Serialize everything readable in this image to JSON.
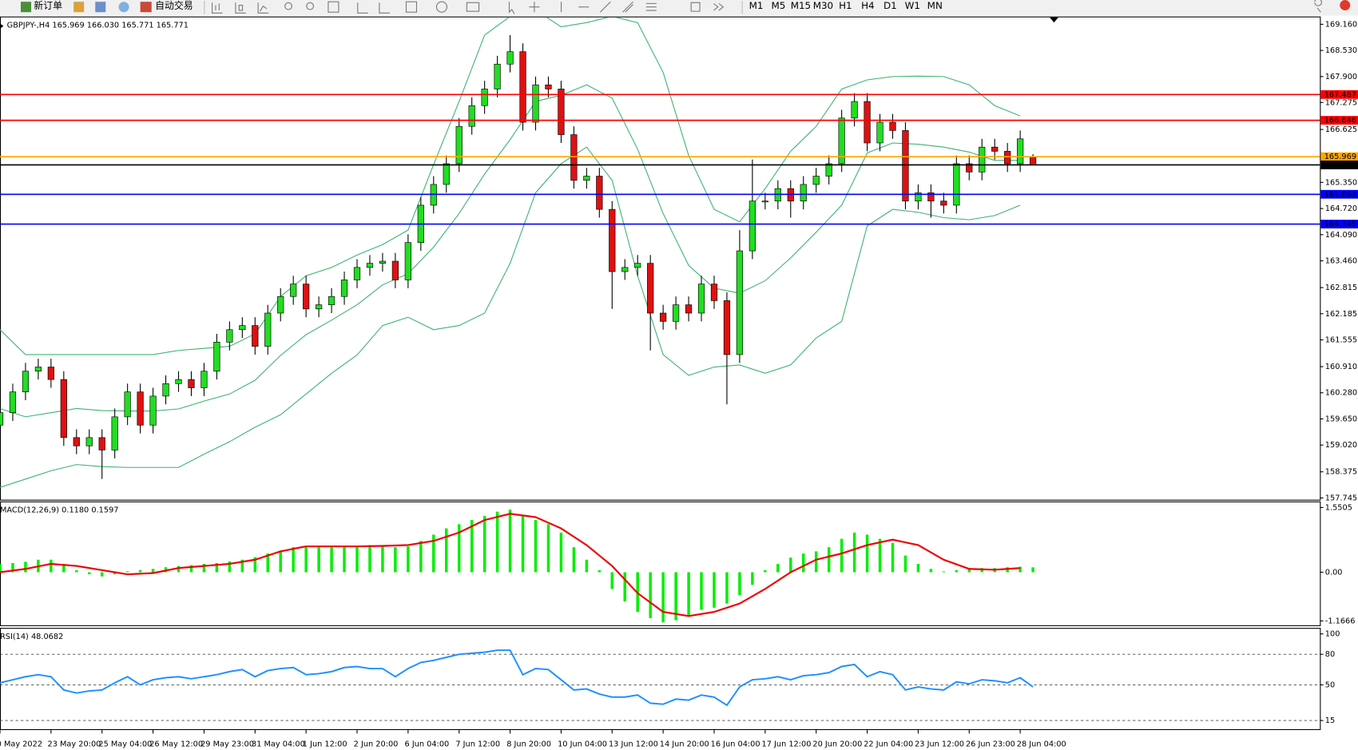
{
  "toolbar": {
    "new_order": "新订单",
    "auto_trading": "自动交易",
    "timeframes": [
      "M1",
      "M5",
      "M15",
      "M30",
      "H1",
      "H4",
      "D1",
      "W1",
      "MN"
    ]
  },
  "chart_data": [
    {
      "type": "candlestick",
      "title": "GBPJPY-,H4  165.969 166.030 165.771 165.771",
      "up_color": "#22dd22",
      "down_color": "#e01010",
      "x": [
        0,
        2,
        4,
        6,
        8,
        10,
        12,
        14,
        16,
        18,
        20,
        22,
        24,
        26,
        28,
        30,
        32,
        34,
        36,
        38,
        40,
        42,
        44,
        46,
        48,
        50,
        52,
        54,
        56,
        58,
        60,
        62,
        64,
        66,
        68,
        70,
        72,
        74,
        76,
        78,
        80,
        82,
        84,
        86,
        88,
        90,
        92,
        94,
        96,
        98,
        100,
        102,
        104,
        106,
        108,
        110,
        112,
        114,
        116,
        118,
        120,
        122,
        124,
        126,
        128,
        130,
        132,
        134,
        136,
        138,
        140,
        142,
        144,
        146,
        148,
        150,
        152,
        154,
        156,
        158,
        160,
        162
      ],
      "open": [
        159.5,
        159.8,
        160.3,
        160.8,
        160.9,
        160.6,
        159.2,
        159.0,
        159.2,
        158.9,
        159.7,
        160.3,
        159.5,
        160.2,
        160.5,
        160.6,
        160.4,
        160.8,
        161.5,
        161.8,
        161.9,
        161.4,
        162.2,
        162.6,
        162.9,
        162.3,
        162.4,
        162.6,
        163.0,
        163.3,
        163.4,
        163.45,
        163.0,
        163.9,
        164.8,
        165.3,
        165.8,
        166.7,
        167.2,
        167.6,
        168.2,
        168.5,
        166.8,
        167.7,
        167.6,
        166.5,
        165.4,
        165.5,
        164.7,
        163.2,
        163.3,
        163.4,
        162.2,
        162.0,
        162.4,
        162.2,
        162.9,
        162.5,
        161.2,
        163.7,
        164.9,
        164.9,
        165.2,
        164.9,
        165.3,
        165.5,
        165.8,
        166.9,
        167.3,
        166.3,
        166.8,
        166.6,
        164.9,
        165.1,
        164.9,
        164.8,
        165.8,
        165.6,
        166.2,
        166.1,
        165.8,
        165.969
      ],
      "high": [
        160.0,
        160.5,
        161.0,
        161.1,
        161.1,
        160.8,
        159.4,
        159.4,
        159.4,
        159.9,
        160.5,
        160.5,
        160.4,
        160.7,
        160.8,
        160.8,
        161.0,
        161.7,
        162.0,
        162.1,
        162.1,
        162.4,
        162.8,
        163.1,
        163.1,
        162.6,
        162.8,
        163.2,
        163.5,
        163.6,
        163.65,
        163.65,
        164.1,
        165.0,
        165.5,
        166.0,
        166.9,
        167.4,
        167.8,
        168.4,
        168.9,
        168.7,
        167.9,
        167.9,
        167.8,
        166.7,
        165.7,
        165.7,
        164.9,
        163.5,
        163.6,
        163.6,
        162.4,
        162.6,
        162.6,
        163.1,
        163.1,
        162.7,
        164.2,
        165.9,
        165.1,
        165.4,
        165.4,
        165.5,
        165.7,
        166.0,
        167.1,
        167.5,
        167.5,
        167.0,
        167.0,
        166.8,
        165.3,
        165.3,
        165.1,
        166.0,
        166.0,
        166.4,
        166.4,
        166.3,
        166.6,
        166.03
      ],
      "low": [
        159.3,
        159.6,
        160.1,
        160.6,
        160.4,
        159.0,
        158.8,
        158.8,
        158.2,
        158.7,
        159.5,
        159.3,
        159.3,
        160.0,
        160.3,
        160.2,
        160.2,
        160.6,
        161.3,
        161.6,
        161.2,
        161.2,
        162.0,
        162.4,
        162.1,
        162.1,
        162.2,
        162.4,
        162.8,
        163.1,
        163.2,
        162.8,
        162.8,
        163.7,
        164.6,
        165.1,
        165.6,
        166.5,
        167.0,
        167.4,
        168.0,
        166.6,
        166.6,
        167.4,
        166.3,
        165.2,
        165.2,
        164.5,
        162.3,
        163.0,
        163.1,
        161.3,
        161.8,
        161.8,
        162.0,
        162.0,
        162.3,
        160.0,
        161.0,
        163.5,
        164.7,
        164.7,
        164.5,
        164.7,
        165.1,
        165.3,
        165.6,
        166.7,
        166.1,
        166.1,
        166.4,
        164.7,
        164.7,
        164.5,
        164.6,
        164.6,
        165.4,
        165.4,
        165.9,
        165.6,
        165.6,
        165.771
      ],
      "close": [
        159.8,
        160.3,
        160.8,
        160.9,
        160.6,
        159.2,
        159.0,
        159.2,
        158.9,
        159.7,
        160.3,
        159.5,
        160.2,
        160.5,
        160.6,
        160.4,
        160.8,
        161.5,
        161.8,
        161.9,
        161.4,
        162.2,
        162.6,
        162.9,
        162.3,
        162.4,
        162.6,
        163.0,
        163.3,
        163.4,
        163.45,
        163.0,
        163.9,
        164.8,
        165.3,
        165.8,
        166.7,
        167.2,
        167.6,
        168.2,
        168.5,
        166.8,
        167.7,
        167.6,
        166.5,
        165.4,
        165.5,
        164.7,
        163.2,
        163.3,
        163.4,
        162.2,
        162.0,
        162.4,
        162.2,
        162.9,
        162.5,
        161.2,
        163.7,
        164.9,
        164.9,
        165.2,
        164.9,
        165.3,
        165.5,
        165.8,
        166.9,
        167.3,
        166.3,
        166.8,
        166.6,
        164.9,
        165.1,
        164.9,
        164.8,
        165.8,
        165.6,
        166.2,
        166.1,
        165.8,
        166.4,
        165.771
      ],
      "overlay_x": [
        0,
        4,
        8,
        12,
        16,
        20,
        24,
        28,
        32,
        36,
        40,
        44,
        48,
        52,
        56,
        60,
        64,
        68,
        72,
        76,
        80,
        84,
        88,
        92,
        96,
        100,
        104,
        108,
        112,
        116,
        120,
        124,
        128,
        132,
        136,
        140,
        144,
        148,
        152,
        156,
        160
      ],
      "overlays": [
        {
          "color": "#3cb371",
          "values": [
            161.8,
            161.2,
            161.2,
            161.2,
            161.2,
            161.2,
            161.2,
            161.3,
            161.35,
            161.4,
            161.7,
            162.6,
            163.1,
            163.3,
            163.6,
            163.85,
            164.2,
            165.78,
            167.3,
            168.9,
            169.35,
            169.5,
            169.1,
            169.2,
            169.35,
            169.2,
            168.0,
            166.0,
            164.7,
            164.4,
            165.2,
            166.1,
            166.7,
            167.6,
            167.82,
            167.9,
            167.91,
            167.9,
            167.7,
            167.2,
            166.95
          ]
        },
        {
          "color": "#3cb371",
          "values": [
            159.9,
            159.7,
            159.8,
            159.9,
            159.85,
            159.84,
            159.84,
            159.89,
            160.08,
            160.25,
            160.58,
            161.18,
            161.68,
            162.03,
            162.4,
            162.88,
            163.15,
            163.79,
            164.6,
            165.55,
            166.38,
            167.3,
            167.45,
            167.7,
            167.38,
            166.15,
            164.6,
            163.35,
            162.8,
            162.68,
            162.98,
            163.53,
            164.15,
            164.8,
            166.06,
            166.3,
            166.27,
            166.2,
            166.08,
            165.88,
            165.88
          ]
        },
        {
          "color": "#3cb371",
          "values": [
            158.0,
            158.2,
            158.4,
            158.55,
            158.5,
            158.48,
            158.48,
            158.48,
            158.8,
            159.1,
            159.45,
            159.75,
            160.25,
            160.75,
            161.19,
            161.9,
            162.1,
            161.8,
            161.9,
            162.2,
            163.4,
            165.1,
            165.8,
            166.2,
            165.4,
            163.1,
            161.2,
            160.7,
            160.9,
            160.95,
            160.75,
            160.95,
            161.6,
            162.0,
            164.3,
            164.7,
            164.63,
            164.5,
            164.45,
            164.55,
            164.8
          ]
        }
      ],
      "hlines": [
        {
          "value": 167.467,
          "color": "#ff0000"
        },
        {
          "value": 166.846,
          "color": "#ff0000"
        },
        {
          "value": 165.969,
          "color": "#ffa500"
        },
        {
          "value": 165.771,
          "color": "#000000"
        },
        {
          "value": 165.063,
          "color": "#0000ff"
        },
        {
          "value": 164.345,
          "color": "#0000ff"
        }
      ],
      "xlim": [
        0,
        207
      ],
      "xticks": [
        {
          "value": 0,
          "label": "0 May 2022"
        },
        {
          "value": 8,
          "label": "23 May 20:00"
        },
        {
          "value": 16,
          "label": "25 May 04:00"
        },
        {
          "value": 24,
          "label": "26 May 12:00"
        },
        {
          "value": 32,
          "label": "29 May 23:00"
        },
        {
          "value": 40,
          "label": "31 May 04:00"
        },
        {
          "value": 48,
          "label": "1 Jun 12:00"
        },
        {
          "value": 56,
          "label": "2 Jun 20:00"
        },
        {
          "value": 64,
          "label": "6 Jun 04:00"
        },
        {
          "value": 72,
          "label": "7 Jun 12:00"
        },
        {
          "value": 80,
          "label": "8 Jun 20:00"
        },
        {
          "value": 88,
          "label": "10 Jun 04:00"
        },
        {
          "value": 96,
          "label": "13 Jun 12:00"
        },
        {
          "value": 104,
          "label": "14 Jun 20:00"
        },
        {
          "value": 112,
          "label": "16 Jun 04:00"
        },
        {
          "value": 120,
          "label": "17 Jun 12:00"
        },
        {
          "value": 128,
          "label": "20 Jun 20:00"
        },
        {
          "value": 136,
          "label": "22 Jun 04:00"
        },
        {
          "value": 144,
          "label": "23 Jun 12:00"
        },
        {
          "value": 152,
          "label": "26 Jun 23:00"
        },
        {
          "value": 160,
          "label": "28 Jun 04:00"
        }
      ],
      "ylim": [
        157.703,
        169.327
      ],
      "yticks": [
        {
          "value": 169.16,
          "label": "169.160"
        },
        {
          "value": 168.53,
          "label": "168.530"
        },
        {
          "value": 167.9,
          "label": "167.900"
        },
        167.275,
        166.625,
        {
          "value": 165.35,
          "label": "165.350"
        },
        {
          "value": 164.72,
          "label": "164.720"
        },
        {
          "value": 164.09,
          "label": "164.090"
        },
        {
          "value": 163.46,
          "label": "163.460"
        },
        162.815,
        162.185,
        161.555,
        {
          "value": 160.91,
          "label": "160.910"
        },
        {
          "value": 160.28,
          "label": "160.280"
        },
        {
          "value": 159.65,
          "label": "159.650"
        },
        {
          "value": 159.02,
          "label": "159.020"
        },
        158.375,
        157.745
      ]
    },
    {
      "type": "macd",
      "title": "MACD(12,26,9) 0.1180 0.1597",
      "x": [
        0,
        2,
        4,
        6,
        8,
        10,
        12,
        14,
        16,
        18,
        20,
        22,
        24,
        26,
        28,
        30,
        32,
        34,
        36,
        38,
        40,
        42,
        44,
        46,
        48,
        50,
        52,
        54,
        56,
        58,
        60,
        62,
        64,
        66,
        68,
        70,
        72,
        74,
        76,
        78,
        80,
        82,
        84,
        86,
        88,
        90,
        92,
        94,
        96,
        98,
        100,
        102,
        104,
        106,
        108,
        110,
        112,
        114,
        116,
        118,
        120,
        122,
        124,
        126,
        128,
        130,
        132,
        134,
        136,
        138,
        140,
        142,
        144,
        146,
        148,
        150,
        152,
        154,
        156,
        158,
        160,
        162
      ],
      "histogram": {
        "color": "#00ee00",
        "values": [
          0.2,
          0.22,
          0.25,
          0.3,
          0.3,
          0.2,
          0.05,
          -0.05,
          -0.1,
          -0.05,
          0.02,
          0.05,
          0.08,
          0.12,
          0.15,
          0.17,
          0.2,
          0.22,
          0.26,
          0.3,
          0.36,
          0.45,
          0.52,
          0.6,
          0.6,
          0.6,
          0.6,
          0.62,
          0.64,
          0.65,
          0.63,
          0.6,
          0.62,
          0.75,
          0.9,
          1.05,
          1.15,
          1.25,
          1.35,
          1.45,
          1.5,
          1.35,
          1.25,
          1.15,
          0.95,
          0.6,
          0.3,
          0.05,
          -0.4,
          -0.7,
          -0.95,
          -1.1,
          -1.2,
          -1.15,
          -1.05,
          -0.9,
          -0.85,
          -0.75,
          -0.55,
          -0.3,
          0.05,
          0.2,
          0.35,
          0.45,
          0.5,
          0.6,
          0.8,
          0.95,
          0.9,
          0.8,
          0.7,
          0.4,
          0.2,
          0.08,
          0.02,
          0.05,
          0.08,
          0.1,
          0.1,
          0.12,
          0.13,
          0.118
        ]
      },
      "signal": {
        "color": "#ee0000",
        "x": [
          0,
          4,
          8,
          12,
          16,
          20,
          24,
          28,
          32,
          36,
          40,
          44,
          48,
          52,
          56,
          60,
          64,
          68,
          72,
          76,
          80,
          84,
          88,
          92,
          96,
          100,
          104,
          108,
          112,
          116,
          120,
          124,
          128,
          132,
          136,
          140,
          144,
          148,
          152,
          156,
          160
        ],
        "values": [
          0.0,
          0.08,
          0.2,
          0.15,
          0.05,
          -0.05,
          -0.02,
          0.1,
          0.15,
          0.2,
          0.3,
          0.5,
          0.62,
          0.62,
          0.62,
          0.63,
          0.65,
          0.75,
          0.95,
          1.25,
          1.4,
          1.32,
          1.05,
          0.65,
          0.15,
          -0.5,
          -0.95,
          -1.05,
          -0.95,
          -0.75,
          -0.4,
          0.0,
          0.3,
          0.45,
          0.65,
          0.78,
          0.65,
          0.3,
          0.08,
          0.06,
          0.1
        ]
      },
      "ylim": [
        -1.27,
        1.675
      ],
      "yticks": [
        1.5505,
        {
          "value": 0,
          "label": "0.00"
        },
        -1.1666
      ]
    },
    {
      "type": "line",
      "title": "RSI(14) 48.0682",
      "color": "#1e90ff",
      "x": [
        0,
        2,
        4,
        6,
        8,
        10,
        12,
        14,
        16,
        18,
        20,
        22,
        24,
        26,
        28,
        30,
        32,
        34,
        36,
        38,
        40,
        42,
        44,
        46,
        48,
        50,
        52,
        54,
        56,
        58,
        60,
        62,
        64,
        66,
        68,
        70,
        72,
        74,
        76,
        78,
        80,
        82,
        84,
        86,
        88,
        90,
        92,
        94,
        96,
        98,
        100,
        102,
        104,
        106,
        108,
        110,
        112,
        114,
        116,
        118,
        120,
        122,
        124,
        126,
        128,
        130,
        132,
        134,
        136,
        138,
        140,
        142,
        144,
        146,
        148,
        150,
        152,
        154,
        156,
        158,
        160,
        162
      ],
      "values": [
        52,
        55,
        58,
        60,
        58,
        45,
        42,
        44,
        45,
        52,
        58,
        50,
        55,
        57,
        58,
        56,
        58,
        60,
        63,
        65,
        58,
        64,
        66,
        67,
        60,
        61,
        63,
        67,
        68,
        66,
        66,
        58,
        66,
        72,
        74,
        77,
        80,
        81,
        82,
        84,
        84,
        60,
        66,
        65,
        55,
        45,
        46,
        41,
        38,
        38,
        40,
        32,
        31,
        36,
        35,
        40,
        38,
        30,
        48,
        55,
        56,
        58,
        55,
        59,
        60,
        62,
        68,
        70,
        58,
        63,
        60,
        45,
        48,
        46,
        45,
        53,
        51,
        55,
        54,
        52,
        57,
        48.0682
      ],
      "levels": [
        80,
        50,
        15
      ],
      "ylim": [
        6.5,
        105.1
      ],
      "yticks": [
        100,
        80,
        50,
        15
      ]
    }
  ]
}
